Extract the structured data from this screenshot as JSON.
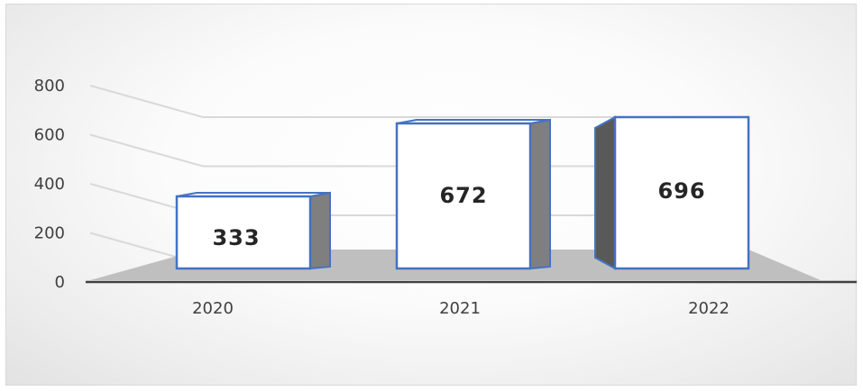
{
  "chart_data": {
    "type": "bar",
    "title": "",
    "xlabel": "",
    "ylabel": "",
    "categories": [
      "2020",
      "2021",
      "2022"
    ],
    "values": [
      333,
      672,
      696
    ],
    "data_labels": [
      "333",
      "672",
      "696"
    ],
    "ylim": [
      0,
      800
    ],
    "y_ticks": [
      "0",
      "200",
      "400",
      "600",
      "800"
    ],
    "grid": true,
    "legend": "none",
    "style": "3d-column",
    "colors": {
      "bar_fill": "#ffffff",
      "bar_border": "#4472c4",
      "bar_side": "#7f7f7f",
      "floor": "#bfbfbf",
      "gridline": "#d9d9d9",
      "axis": "#404040"
    }
  }
}
